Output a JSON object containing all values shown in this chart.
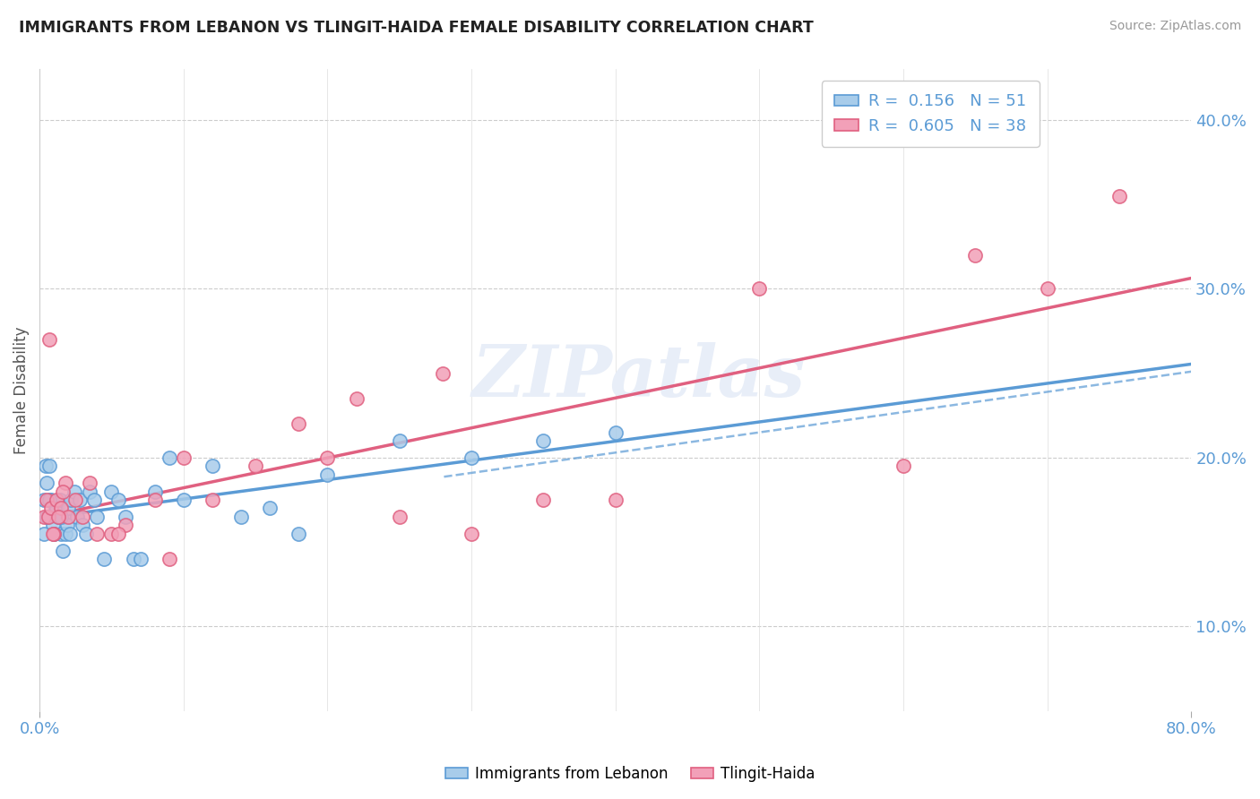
{
  "title": "IMMIGRANTS FROM LEBANON VS TLINGIT-HAIDA FEMALE DISABILITY CORRELATION CHART",
  "source": "Source: ZipAtlas.com",
  "ylabel": "Female Disability",
  "xlim": [
    0.0,
    0.8
  ],
  "ylim": [
    0.05,
    0.43
  ],
  "right_yticks": [
    0.1,
    0.2,
    0.3,
    0.4
  ],
  "right_yticklabels": [
    "10.0%",
    "20.0%",
    "30.0%",
    "40.0%"
  ],
  "color_blue": "#A8CCEA",
  "color_pink": "#F2A0B8",
  "color_blue_edge": "#5B9BD5",
  "color_pink_edge": "#E06080",
  "color_blue_line": "#5B9BD5",
  "color_pink_line": "#E06080",
  "color_text": "#5B9BD5",
  "watermark": "ZIPatlas",
  "blue_x": [
    0.003,
    0.004,
    0.005,
    0.006,
    0.007,
    0.008,
    0.009,
    0.01,
    0.011,
    0.012,
    0.013,
    0.014,
    0.015,
    0.016,
    0.017,
    0.018,
    0.019,
    0.02,
    0.021,
    0.022,
    0.024,
    0.026,
    0.028,
    0.03,
    0.032,
    0.035,
    0.038,
    0.04,
    0.045,
    0.05,
    0.055,
    0.06,
    0.065,
    0.07,
    0.08,
    0.09,
    0.1,
    0.12,
    0.14,
    0.16,
    0.18,
    0.2,
    0.25,
    0.3,
    0.35,
    0.4,
    0.003,
    0.005,
    0.007,
    0.01,
    0.015
  ],
  "blue_y": [
    0.175,
    0.195,
    0.185,
    0.165,
    0.195,
    0.175,
    0.16,
    0.155,
    0.17,
    0.17,
    0.165,
    0.175,
    0.155,
    0.145,
    0.165,
    0.155,
    0.16,
    0.17,
    0.155,
    0.175,
    0.18,
    0.165,
    0.175,
    0.16,
    0.155,
    0.18,
    0.175,
    0.165,
    0.14,
    0.18,
    0.175,
    0.165,
    0.14,
    0.14,
    0.18,
    0.2,
    0.175,
    0.195,
    0.165,
    0.17,
    0.155,
    0.19,
    0.21,
    0.2,
    0.21,
    0.215,
    0.155,
    0.165,
    0.175,
    0.155,
    0.165
  ],
  "pink_x": [
    0.003,
    0.005,
    0.006,
    0.008,
    0.01,
    0.012,
    0.015,
    0.018,
    0.02,
    0.025,
    0.03,
    0.035,
    0.04,
    0.05,
    0.06,
    0.08,
    0.1,
    0.12,
    0.15,
    0.18,
    0.2,
    0.22,
    0.25,
    0.28,
    0.3,
    0.35,
    0.4,
    0.5,
    0.6,
    0.65,
    0.7,
    0.75,
    0.007,
    0.009,
    0.013,
    0.016,
    0.055,
    0.09
  ],
  "pink_y": [
    0.165,
    0.175,
    0.165,
    0.17,
    0.155,
    0.175,
    0.17,
    0.185,
    0.165,
    0.175,
    0.165,
    0.185,
    0.155,
    0.155,
    0.16,
    0.175,
    0.2,
    0.175,
    0.195,
    0.22,
    0.2,
    0.235,
    0.165,
    0.25,
    0.155,
    0.175,
    0.175,
    0.3,
    0.195,
    0.32,
    0.3,
    0.355,
    0.27,
    0.155,
    0.165,
    0.18,
    0.155,
    0.14
  ]
}
